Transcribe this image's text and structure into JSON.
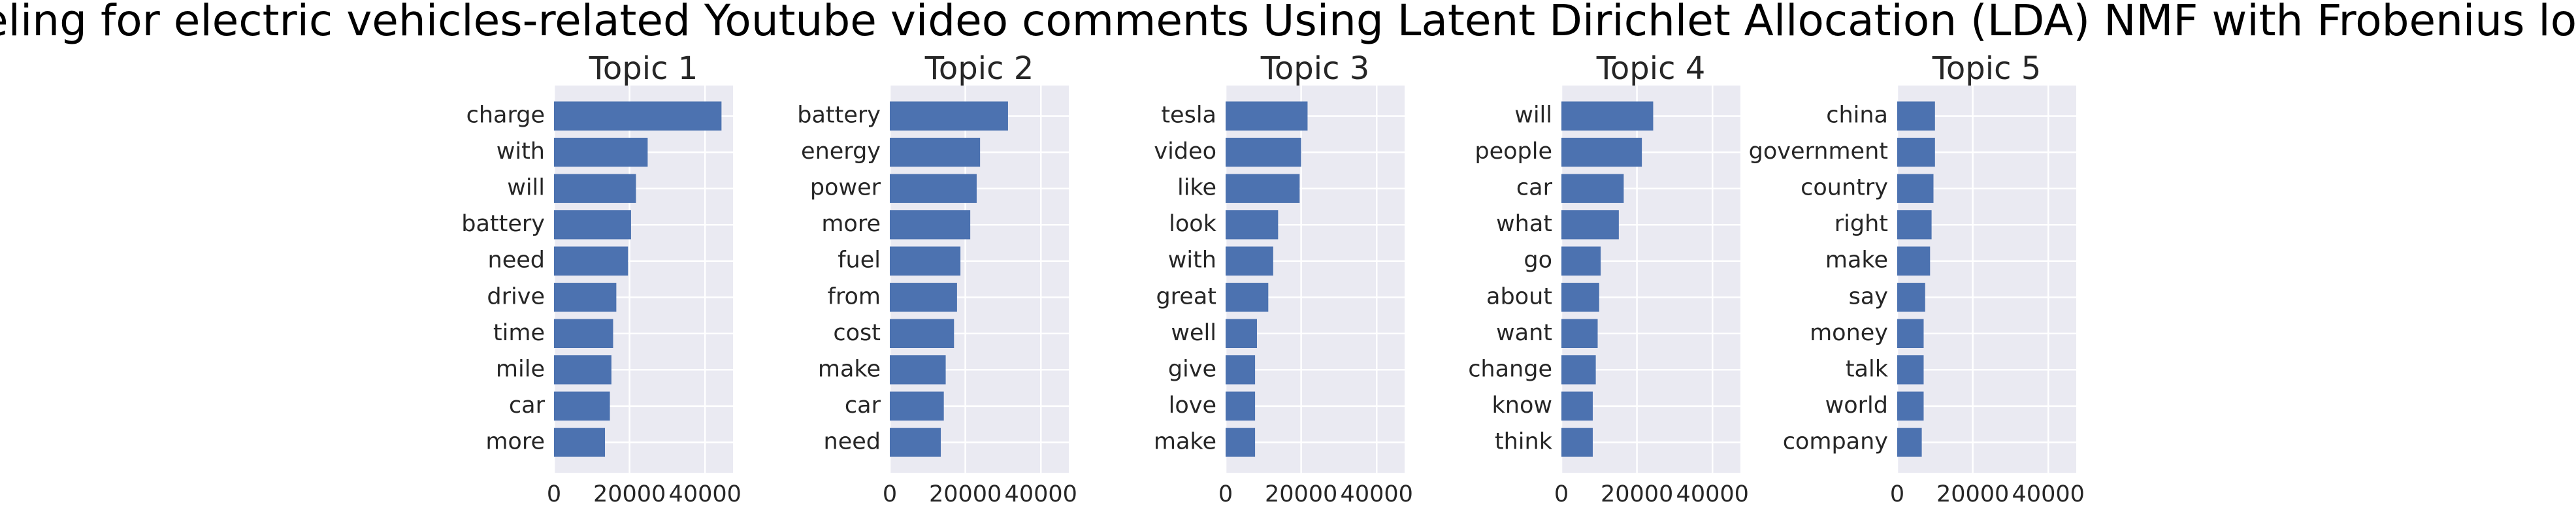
{
  "title": "Topic modeling for electric vehicles-related Youtube video comments Using Latent Dirichlet Allocation (LDA) NMF with Frobenius loss function",
  "chart_data": [
    {
      "type": "bar",
      "orientation": "horizontal",
      "title": "Topic 1",
      "color": "#4c72b0",
      "grid": true,
      "categories": [
        "charge",
        "with",
        "will",
        "battery",
        "need",
        "drive",
        "time",
        "mile",
        "car",
        "more"
      ],
      "values": [
        44350,
        24800,
        21700,
        20400,
        19600,
        16500,
        15650,
        15200,
        14800,
        13500
      ],
      "xlim": [
        0,
        47400
      ],
      "xticks": [
        0,
        20000,
        40000
      ]
    },
    {
      "type": "bar",
      "orientation": "horizontal",
      "title": "Topic 2",
      "color": "#4c72b0",
      "grid": true,
      "categories": [
        "battery",
        "energy",
        "power",
        "more",
        "fuel",
        "from",
        "cost",
        "make",
        "car",
        "need"
      ],
      "values": [
        31300,
        23900,
        23000,
        21300,
        18700,
        17800,
        17000,
        14800,
        14300,
        13500
      ],
      "xlim": [
        0,
        47400
      ],
      "xticks": [
        0,
        20000,
        40000
      ]
    },
    {
      "type": "bar",
      "orientation": "horizontal",
      "title": "Topic 3",
      "color": "#4c72b0",
      "grid": true,
      "categories": [
        "tesla",
        "video",
        "like",
        "look",
        "with",
        "great",
        "well",
        "give",
        "love",
        "make"
      ],
      "values": [
        21700,
        20000,
        19600,
        13900,
        12600,
        11300,
        8300,
        7800,
        7800,
        7800
      ],
      "xlim": [
        0,
        47400
      ],
      "xticks": [
        0,
        20000,
        40000
      ]
    },
    {
      "type": "bar",
      "orientation": "horizontal",
      "title": "Topic 4",
      "color": "#4c72b0",
      "grid": true,
      "categories": [
        "will",
        "people",
        "car",
        "what",
        "go",
        "about",
        "want",
        "change",
        "know",
        "think"
      ],
      "values": [
        24300,
        21300,
        16500,
        15200,
        10400,
        10000,
        9600,
        9100,
        8300,
        8300
      ],
      "xlim": [
        0,
        47400
      ],
      "xticks": [
        0,
        20000,
        40000
      ]
    },
    {
      "type": "bar",
      "orientation": "horizontal",
      "title": "Topic 5",
      "color": "#4c72b0",
      "grid": true,
      "categories": [
        "china",
        "government",
        "country",
        "right",
        "make",
        "say",
        "money",
        "talk",
        "world",
        "company"
      ],
      "values": [
        10000,
        10000,
        9600,
        9100,
        8700,
        7400,
        7000,
        7000,
        7000,
        6500
      ],
      "xlim": [
        0,
        47400
      ],
      "xticks": [
        0,
        20000,
        40000
      ]
    }
  ]
}
